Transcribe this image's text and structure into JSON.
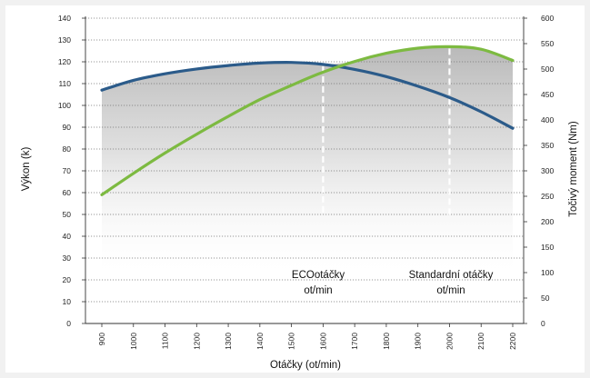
{
  "chart_data": {
    "type": "line",
    "title": "",
    "xlabel": "Otáčky (ot/min)",
    "ylabel_left": "Výkon (k)",
    "ylabel_right": "Točivý moment (Nm)",
    "x": [
      900,
      1000,
      1100,
      1200,
      1300,
      1400,
      1500,
      1600,
      1700,
      1800,
      1900,
      2000,
      2100,
      2200
    ],
    "xlim": [
      900,
      2200
    ],
    "ylim_left": [
      0,
      140
    ],
    "ylim_right": [
      0,
      600
    ],
    "yticks_left": [
      0,
      10,
      20,
      30,
      40,
      50,
      60,
      70,
      80,
      90,
      100,
      110,
      120,
      130,
      140
    ],
    "yticks_right": [
      0,
      50,
      100,
      150,
      200,
      250,
      300,
      350,
      400,
      450,
      500,
      550,
      600
    ],
    "series": [
      {
        "axis": "left",
        "color": "#2b5b8a",
        "values": [
          107,
          111.5,
          114.5,
          116.7,
          118.3,
          119.4,
          119.7,
          118.8,
          116.5,
          113.2,
          108.8,
          103.6,
          97.1,
          89.5
        ]
      },
      {
        "axis": "right",
        "color": "#7dba41",
        "values": [
          253,
          295,
          335,
          372,
          407,
          440,
          468,
          494,
          515,
          531,
          541,
          544,
          539,
          517
        ]
      }
    ],
    "fill_under": "gray-gradient",
    "grid": "dotted-horizontal",
    "annotations": [
      {
        "lines": [
          "ECOotáčky",
          "ot/min"
        ],
        "x": 1600
      },
      {
        "lines": [
          "Standardní otáčky",
          "ot/min"
        ],
        "x": 2000
      }
    ]
  }
}
